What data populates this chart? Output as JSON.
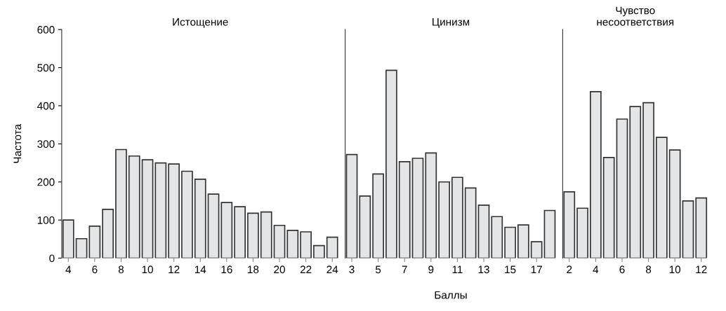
{
  "chart_data": [
    {
      "type": "bar",
      "title": "Истощение",
      "ylabel": "Частота",
      "x": [
        4,
        5,
        6,
        7,
        8,
        9,
        10,
        11,
        12,
        13,
        14,
        15,
        16,
        17,
        18,
        19,
        20,
        21,
        22,
        23,
        24
      ],
      "values": [
        100,
        51,
        84,
        128,
        285,
        268,
        258,
        250,
        247,
        228,
        207,
        168,
        146,
        135,
        118,
        121,
        86,
        73,
        69,
        33,
        55
      ],
      "color": "#e4e5e6",
      "xlim": [
        3.5,
        24.5
      ],
      "ylim": [
        0,
        600
      ],
      "xticks": [
        4,
        6,
        8,
        10,
        12,
        14,
        16,
        18,
        20,
        22,
        24
      ],
      "yticks": [
        0,
        100,
        200,
        300,
        400,
        500,
        600
      ],
      "grid": false,
      "legend": false
    },
    {
      "type": "bar",
      "title": "Цинизм",
      "xlabel": "Баллы",
      "x": [
        3,
        4,
        5,
        6,
        7,
        8,
        9,
        10,
        11,
        12,
        13,
        14,
        15,
        16,
        17,
        18
      ],
      "values": [
        272,
        163,
        221,
        493,
        253,
        262,
        276,
        200,
        212,
        184,
        139,
        109,
        81,
        87,
        43,
        125
      ],
      "color": "#e4e5e6",
      "xlim": [
        2.5,
        18.5
      ],
      "ylim": [
        0,
        600
      ],
      "xticks": [
        3,
        5,
        7,
        9,
        11,
        13,
        15,
        17
      ],
      "tick_labels": "x",
      "grid": false,
      "legend": false
    },
    {
      "type": "bar",
      "title": "Чувство\nнесоответствия",
      "x": [
        2,
        3,
        4,
        5,
        6,
        7,
        8,
        9,
        10,
        11,
        12
      ],
      "values": [
        174,
        131,
        437,
        264,
        365,
        398,
        408,
        317,
        284,
        150,
        158
      ],
      "color": "#e4e5e6",
      "xlim": [
        1.5,
        12.5
      ],
      "ylim": [
        0,
        600
      ],
      "xticks": [
        2,
        4,
        6,
        8,
        10,
        12
      ],
      "tick_labels": "x",
      "grid": false,
      "legend": false
    }
  ]
}
